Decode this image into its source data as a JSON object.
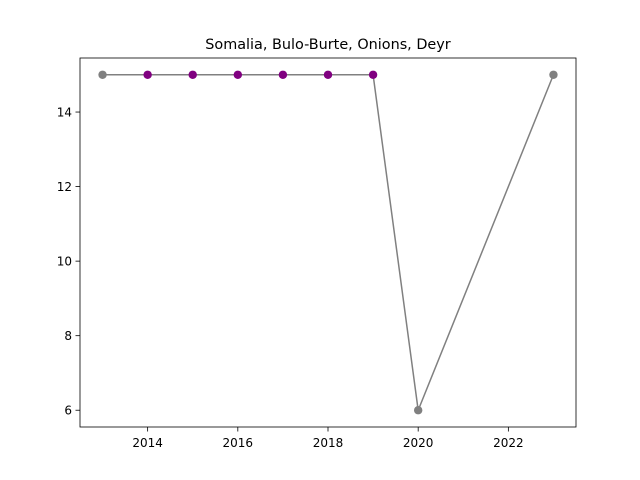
{
  "chart_data": {
    "type": "line",
    "title": "Somalia, Bulo-Burte, Onions, Deyr",
    "xlabel": "",
    "ylabel": "",
    "xlim": [
      2012.5,
      2023.5
    ],
    "ylim": [
      5.55,
      15.45
    ],
    "xticks": [
      2014,
      2016,
      2018,
      2020,
      2022
    ],
    "yticks": [
      6,
      8,
      10,
      12,
      14
    ],
    "grid": false,
    "line_color": "#808080",
    "series": [
      {
        "x": [
          2013,
          2014,
          2015,
          2016,
          2017,
          2018,
          2019,
          2020,
          2023
        ],
        "values": [
          15,
          15,
          15,
          15,
          15,
          15,
          15,
          6,
          15
        ],
        "marker_colors": [
          "#808080",
          "#800080",
          "#800080",
          "#800080",
          "#800080",
          "#800080",
          "#800080",
          "#808080",
          "#808080"
        ]
      }
    ]
  }
}
